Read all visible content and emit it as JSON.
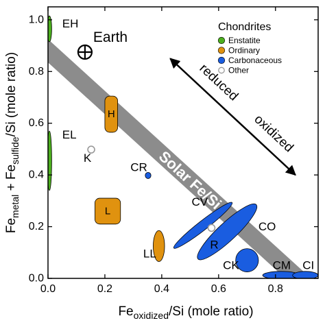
{
  "chart_data": {
    "type": "scatter",
    "xlabel": {
      "base": "Fe",
      "sub": "oxidized",
      "rest": "/Si (mole ratio)"
    },
    "ylabel": {
      "base": "Fe",
      "sub1": "metal",
      "plus": " + Fe",
      "sub2": "sulfide",
      "rest": "/Si (mole ratio)"
    },
    "xlim": [
      0,
      0.95
    ],
    "ylim": [
      0,
      1.05
    ],
    "xticks": [
      0.0,
      0.2,
      0.4,
      0.6,
      0.8
    ],
    "xtick_labels": [
      "0.0",
      "0.2",
      "0.4",
      "0.6",
      "0.8"
    ],
    "yticks": [
      0.0,
      0.2,
      0.4,
      0.6,
      0.8,
      1.0
    ],
    "ytick_labels": [
      "0.0",
      "0.2",
      "0.4",
      "0.6",
      "0.8",
      "1.0"
    ],
    "solar_band": {
      "label": "Solar Fe/Si",
      "center_intercept": 0.88,
      "half_width": 0.045
    },
    "earth": {
      "label": "Earth",
      "x": 0.13,
      "y": 0.875
    },
    "arrow": {
      "start_label": "reduced",
      "end_label": "oxidized",
      "from": [
        0.43,
        0.85
      ],
      "to": [
        0.87,
        0.4
      ]
    },
    "legend": {
      "title": "Chondrites",
      "position": "top-right",
      "entries": [
        {
          "label": "Enstatite",
          "color": "#4caf1e",
          "marker": "filled"
        },
        {
          "label": "Ordinary",
          "color": "#e0920f",
          "marker": "filled"
        },
        {
          "label": "Carbonaceous",
          "color": "#1a5de0",
          "marker": "filled"
        },
        {
          "label": "Other",
          "color": "#999999",
          "marker": "hollow"
        }
      ]
    },
    "groups": [
      {
        "label": "EH",
        "class": "Enstatite",
        "shape": "ellipse",
        "cx": 0.005,
        "cy": 0.965,
        "rx": 0.008,
        "ry": 0.05,
        "label_at": [
          0.05,
          0.985
        ]
      },
      {
        "label": "EL",
        "class": "Enstatite",
        "shape": "ellipse",
        "cx": 0.005,
        "cy": 0.455,
        "rx": 0.008,
        "ry": 0.115,
        "label_at": [
          0.05,
          0.555
        ]
      },
      {
        "label": "H",
        "class": "Ordinary",
        "shape": "box",
        "x0": 0.2,
        "x1": 0.245,
        "y0": 0.565,
        "y1": 0.705,
        "label_at": [
          0.2225,
          0.635
        ]
      },
      {
        "label": "L",
        "class": "Ordinary",
        "shape": "box",
        "x0": 0.165,
        "x1": 0.255,
        "y0": 0.21,
        "y1": 0.31,
        "label_at": [
          0.21,
          0.26
        ]
      },
      {
        "label": "LL",
        "class": "Ordinary",
        "shape": "ellipse",
        "cx": 0.39,
        "cy": 0.125,
        "rx": 0.02,
        "ry": 0.06,
        "label_at": [
          0.335,
          0.095
        ]
      },
      {
        "label": "CR",
        "class": "Carbonaceous",
        "shape": "ellipse",
        "cx": 0.352,
        "cy": 0.398,
        "rx": 0.01,
        "ry": 0.012,
        "label_at": [
          0.29,
          0.43
        ]
      },
      {
        "label": "CV",
        "class": "Carbonaceous",
        "shape": "ellipse",
        "cx": 0.545,
        "cy": 0.205,
        "rx": 0.13,
        "ry": 0.018,
        "angle": 38,
        "label_at": [
          0.505,
          0.295
        ]
      },
      {
        "label": "CO",
        "class": "Carbonaceous",
        "shape": "ellipse",
        "cx": 0.63,
        "cy": 0.18,
        "rx": 0.14,
        "ry": 0.035,
        "angle": 43,
        "label_at": [
          0.74,
          0.2
        ]
      },
      {
        "label": "CK",
        "class": "Carbonaceous",
        "shape": "ellipse",
        "cx": 0.7,
        "cy": 0.07,
        "rx": 0.04,
        "ry": 0.045,
        "label_at": [
          0.615,
          0.05
        ]
      },
      {
        "label": "CM",
        "class": "Carbonaceous",
        "shape": "ellipse",
        "cx": 0.82,
        "cy": 0.012,
        "rx": 0.065,
        "ry": 0.015,
        "label_at": [
          0.79,
          0.05
        ]
      },
      {
        "label": "CI",
        "class": "Carbonaceous",
        "shape": "ellipse",
        "cx": 0.905,
        "cy": 0.012,
        "rx": 0.045,
        "ry": 0.015,
        "label_at": [
          0.895,
          0.05
        ]
      },
      {
        "label": "K",
        "class": "Other",
        "shape": "point",
        "x": 0.152,
        "y": 0.498,
        "label_at": [
          0.125,
          0.465
        ]
      },
      {
        "label": "R",
        "class": "Other",
        "shape": "point",
        "x": 0.575,
        "y": 0.195,
        "label_at": [
          0.57,
          0.13
        ]
      }
    ]
  }
}
